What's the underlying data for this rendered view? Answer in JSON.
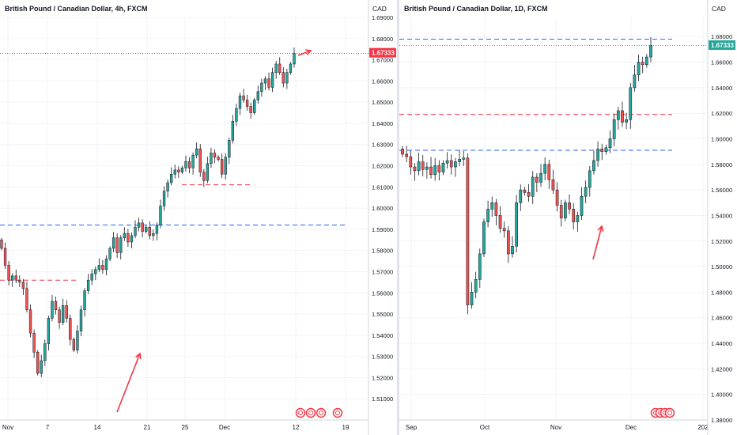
{
  "panels": [
    {
      "id": "left",
      "title": "British Pound / Canadian Dollar, 4h, FXCM",
      "currency": "CAD",
      "last_price_label": "1.67333",
      "y_ticks": [
        "1.69000",
        "1.68000",
        "1.67000",
        "1.66000",
        "1.65000",
        "1.64000",
        "1.63000",
        "1.62000",
        "1.61000",
        "1.60000",
        "1.59000",
        "1.58000",
        "1.57000",
        "1.56000",
        "1.55000",
        "1.54000",
        "1.53000",
        "1.52000",
        "1.51000"
      ],
      "x_ticks": [
        "Nov",
        "7",
        "14",
        "21",
        "25",
        "Dec",
        "12",
        "19"
      ]
    },
    {
      "id": "right",
      "title": "British Pound / Canadian Dollar, 1D, FXCM",
      "currency": "CAD",
      "last_price_label": "1.67333",
      "y_ticks": [
        "1.68000",
        "1.66000",
        "1.64000",
        "1.62000",
        "1.60000",
        "1.58000",
        "1.56000",
        "1.54000",
        "1.52000",
        "1.50000",
        "1.48000",
        "1.46000",
        "1.44000",
        "1.42000",
        "1.40000",
        "1.38000"
      ],
      "x_ticks": [
        "Sep",
        "Oct",
        "Nov",
        "Dec",
        "202"
      ]
    }
  ],
  "colors": {
    "up": "#26a69a",
    "down": "#ef5350",
    "blue_line": "#2962ff",
    "red_line": "#f23645",
    "green_dotted": "#4caf50",
    "arrow": "#f23645",
    "last_price_bg": "#f23645",
    "last_price_bg_right": "#26a69a"
  },
  "chart_data": [
    {
      "type": "candlestick",
      "title": "British Pound / Canadian Dollar, 4h, FXCM",
      "ylabel": "CAD",
      "ylim": [
        1.5,
        1.69
      ],
      "x_ticks": [
        "Nov",
        "7",
        "14",
        "21",
        "25",
        "Dec",
        "12",
        "19"
      ],
      "closes": [
        1.581,
        1.573,
        1.566,
        1.568,
        1.566,
        1.565,
        1.562,
        1.552,
        1.541,
        1.532,
        1.522,
        1.528,
        1.536,
        1.548,
        1.556,
        1.552,
        1.546,
        1.554,
        1.548,
        1.538,
        1.533,
        1.542,
        1.552,
        1.561,
        1.566,
        1.569,
        1.571,
        1.573,
        1.571,
        1.576,
        1.581,
        1.586,
        1.579,
        1.586,
        1.588,
        1.584,
        1.587,
        1.591,
        1.593,
        1.589,
        1.591,
        1.587,
        1.588,
        1.592,
        1.601,
        1.608,
        1.612,
        1.616,
        1.618,
        1.617,
        1.619,
        1.622,
        1.619,
        1.625,
        1.628,
        1.617,
        1.613,
        1.621,
        1.626,
        1.624,
        1.623,
        1.616,
        1.624,
        1.632,
        1.641,
        1.647,
        1.653,
        1.651,
        1.648,
        1.645,
        1.651,
        1.655,
        1.659,
        1.661,
        1.657,
        1.664,
        1.668,
        1.664,
        1.659,
        1.664,
        1.668,
        1.673
      ],
      "levels": [
        {
          "price": 1.592,
          "style": "dashed-blue"
        },
        {
          "price": 1.566,
          "style": "dashed-red"
        },
        {
          "price": 1.611,
          "style": "dashed-red"
        },
        {
          "price": 1.673,
          "style": "dotted-red"
        }
      ],
      "last_price": 1.67333
    },
    {
      "type": "candlestick",
      "title": "British Pound / Canadian Dollar, 1D, FXCM",
      "ylabel": "CAD",
      "ylim": [
        1.38,
        1.695
      ],
      "x_ticks": [
        "Sep",
        "Oct",
        "Nov",
        "Dec",
        "202"
      ],
      "closes": [
        1.588,
        1.586,
        1.578,
        1.575,
        1.582,
        1.576,
        1.578,
        1.572,
        1.579,
        1.574,
        1.581,
        1.583,
        1.578,
        1.582,
        1.584,
        1.585,
        1.47,
        1.48,
        1.49,
        1.51,
        1.535,
        1.545,
        1.55,
        1.54,
        1.53,
        1.528,
        1.51,
        1.516,
        1.55,
        1.56,
        1.558,
        1.555,
        1.57,
        1.566,
        1.573,
        1.58,
        1.568,
        1.56,
        1.548,
        1.538,
        1.55,
        1.545,
        1.535,
        1.54,
        1.555,
        1.562,
        1.575,
        1.583,
        1.592,
        1.59,
        1.593,
        1.6,
        1.615,
        1.622,
        1.613,
        1.615,
        1.64,
        1.65,
        1.66,
        1.658,
        1.664,
        1.673
      ],
      "levels": [
        {
          "price": 1.678,
          "style": "dashed-blue"
        },
        {
          "price": 1.619,
          "style": "dashed-red"
        },
        {
          "price": 1.591,
          "style": "dashed-blue"
        },
        {
          "price": 1.673,
          "style": "dotted-green"
        }
      ],
      "last_price": 1.67333
    }
  ]
}
